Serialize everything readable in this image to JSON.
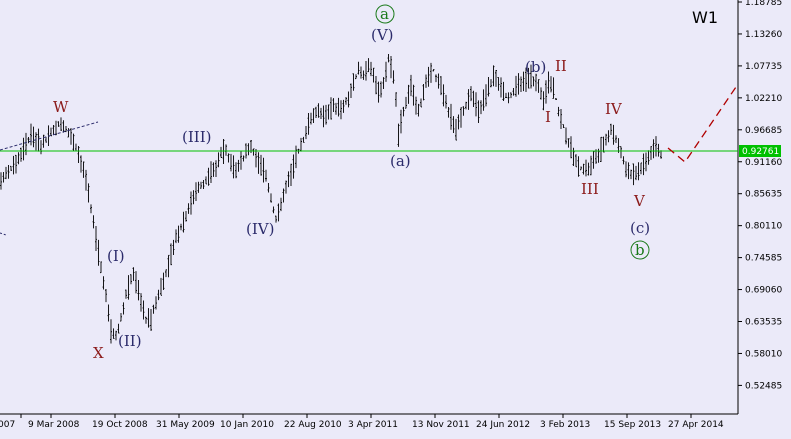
{
  "chart_data": {
    "type": "ohlc",
    "timeframe": "W1",
    "ylim": [
      0.5,
      1.2
    ],
    "y_ticks": [
      "1.18785",
      "1.13260",
      "1.07735",
      "1.02210",
      "0.96685",
      "0.91160",
      "0.85635",
      "0.80110",
      "0.74585",
      "0.69060",
      "0.63535",
      "0.58010",
      "0.52485"
    ],
    "x_ticks": [
      "007",
      "9 Mar 2008",
      "19 Oct 2008",
      "31 May 2009",
      "10 Jan 2010",
      "22 Aug 2010",
      "3 Apr 2011",
      "13 Nov 2011",
      "24 Jun 2012",
      "3 Feb 2013",
      "15 Sep 2013",
      "27 Apr 2014"
    ],
    "current_price": "0.92761",
    "horizontal_level": 0.9276,
    "colors": {
      "background": "#ebeaf9",
      "bars": "#000000",
      "level_line": "#00c000",
      "price_badge": "#00c000",
      "red_labels": "#8b1a1a",
      "blue_labels": "#2b2b6b",
      "green_circle": "#1a7a1a",
      "forecast": "#b00000"
    },
    "price_path": [
      [
        0,
        0.88
      ],
      [
        6,
        0.91
      ],
      [
        12,
        0.96
      ],
      [
        16,
        0.94
      ],
      [
        20,
        0.96
      ],
      [
        24,
        0.98
      ],
      [
        26,
        0.97
      ],
      [
        30,
        0.94
      ],
      [
        34,
        0.88
      ],
      [
        38,
        0.78
      ],
      [
        42,
        0.68
      ],
      [
        44,
        0.62
      ],
      [
        46,
        0.61
      ],
      [
        48,
        0.64
      ],
      [
        50,
        0.68
      ],
      [
        53,
        0.72
      ],
      [
        56,
        0.67
      ],
      [
        58,
        0.64
      ],
      [
        60,
        0.64
      ],
      [
        62,
        0.67
      ],
      [
        66,
        0.72
      ],
      [
        70,
        0.78
      ],
      [
        74,
        0.82
      ],
      [
        78,
        0.86
      ],
      [
        82,
        0.88
      ],
      [
        86,
        0.9
      ],
      [
        88,
        0.93
      ],
      [
        90,
        0.93
      ],
      [
        94,
        0.9
      ],
      [
        97,
        0.92
      ],
      [
        100,
        0.94
      ],
      [
        103,
        0.91
      ],
      [
        106,
        0.89
      ],
      [
        108,
        0.85
      ],
      [
        110,
        0.81
      ],
      [
        112,
        0.84
      ],
      [
        115,
        0.88
      ],
      [
        118,
        0.92
      ],
      [
        121,
        0.95
      ],
      [
        124,
        0.99
      ],
      [
        127,
        1.0
      ],
      [
        130,
        0.99
      ],
      [
        133,
        1.01
      ],
      [
        136,
        1.0
      ],
      [
        139,
        1.02
      ],
      [
        141,
        1.05
      ],
      [
        143,
        1.07
      ],
      [
        145,
        1.06
      ],
      [
        147,
        1.08
      ],
      [
        149,
        1.06
      ],
      [
        151,
        1.03
      ],
      [
        153,
        1.05
      ],
      [
        155,
        1.09
      ],
      [
        157,
        1.06
      ],
      [
        158,
        1.02
      ],
      [
        159,
        0.96
      ],
      [
        161,
        1.0
      ],
      [
        164,
        1.04
      ],
      [
        167,
        1.0
      ],
      [
        170,
        1.05
      ],
      [
        173,
        1.07
      ],
      [
        176,
        1.04
      ],
      [
        179,
        1.0
      ],
      [
        182,
        0.97
      ],
      [
        185,
        1.0
      ],
      [
        188,
        1.03
      ],
      [
        191,
        1.0
      ],
      [
        194,
        1.03
      ],
      [
        197,
        1.06
      ],
      [
        200,
        1.04
      ],
      [
        203,
        1.02
      ],
      [
        206,
        1.04
      ],
      [
        209,
        1.05
      ],
      [
        212,
        1.06
      ],
      [
        215,
        1.04
      ],
      [
        217,
        1.02
      ],
      [
        219,
        1.05
      ],
      [
        221,
        1.04
      ],
      [
        223,
        1.0
      ],
      [
        226,
        0.96
      ],
      [
        229,
        0.92
      ],
      [
        232,
        0.9
      ],
      [
        235,
        0.9
      ],
      [
        238,
        0.92
      ],
      [
        241,
        0.94
      ],
      [
        244,
        0.97
      ],
      [
        247,
        0.94
      ],
      [
        250,
        0.9
      ],
      [
        253,
        0.89
      ],
      [
        256,
        0.9
      ],
      [
        259,
        0.92
      ],
      [
        262,
        0.94
      ],
      [
        265,
        0.92
      ]
    ]
  },
  "labels": {
    "W": "W",
    "X": "X",
    "I_blue": "(I)",
    "II_blue": "(II)",
    "III_blue": "(III)",
    "IV_blue": "(IV)",
    "V_blue": "(V)",
    "a_paren": "(a)",
    "b_paren": "(b)",
    "c_paren": "(c)",
    "a_circle": "a",
    "b_circle": "b",
    "I_red": "I",
    "II_red": "II",
    "III_red": "III",
    "IV_red": "IV",
    "V_red": "V"
  }
}
